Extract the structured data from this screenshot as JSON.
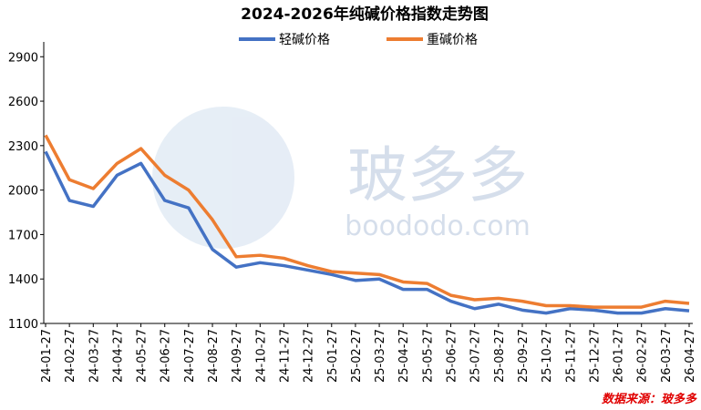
{
  "chart_data": {
    "type": "line",
    "title": "2024-2026年纯碱价格指数走势图",
    "watermark": "玻多多",
    "watermark_url": "boododo.com",
    "source": "数据来源：玻多多",
    "categories": [
      "24-01-27",
      "24-02-27",
      "24-03-27",
      "24-04-27",
      "24-05-27",
      "24-06-27",
      "24-07-27",
      "24-08-27",
      "24-09-27",
      "24-10-27",
      "24-11-27",
      "24-12-27",
      "25-01-27",
      "25-02-27",
      "25-03-27",
      "25-04-27",
      "25-05-27",
      "25-06-27",
      "25-07-27",
      "25-08-27",
      "25-09-27",
      "25-10-27",
      "25-11-27",
      "25-12-27",
      "26-01-27",
      "26-02-27",
      "26-03-27",
      "26-04-27"
    ],
    "series": [
      {
        "name": "轻碱价格",
        "color": "#4472c4",
        "values": [
          2260,
          1930,
          1890,
          2100,
          2180,
          1930,
          1880,
          1600,
          1480,
          1510,
          1490,
          1460,
          1430,
          1390,
          1400,
          1330,
          1330,
          1250,
          1200,
          1230,
          1190,
          1170,
          1200,
          1190,
          1170,
          1170,
          1200,
          1185
        ]
      },
      {
        "name": "重碱价格",
        "color": "#ed7d31",
        "values": [
          2370,
          2070,
          2010,
          2180,
          2280,
          2100,
          2000,
          1800,
          1550,
          1560,
          1540,
          1490,
          1450,
          1440,
          1430,
          1380,
          1370,
          1290,
          1260,
          1270,
          1250,
          1220,
          1220,
          1210,
          1210,
          1210,
          1250,
          1235
        ]
      }
    ],
    "ylim": [
      1100,
      3000
    ],
    "yticks": [
      1100,
      1400,
      1700,
      2000,
      2300,
      2600,
      2900
    ],
    "legend": "top"
  }
}
